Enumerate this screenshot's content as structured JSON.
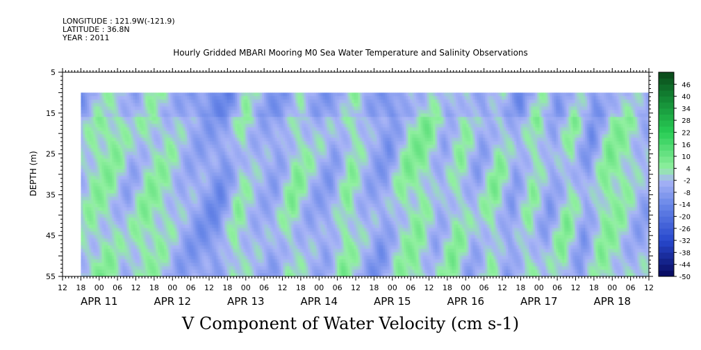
{
  "header": {
    "longitude": "LONGITUDE : 121.9W(-121.9)",
    "latitude": "LATITUDE : 36.8N",
    "year": "YEAR : 2011"
  },
  "chart_data": {
    "type": "heatmap",
    "title": "Hourly Gridded MBARI Mooring M0 Sea Water Temperature and Salinity Observations",
    "xlabel": "V Component of Water Velocity (cm s-1)",
    "ylabel": "DEPTH (m)",
    "ylim": [
      55,
      5
    ],
    "yticks": [
      5,
      15,
      25,
      35,
      45,
      55
    ],
    "data_depth_range": [
      10,
      55
    ],
    "x_hour_ticks": [
      "12",
      "18",
      "00",
      "06",
      "12",
      "18",
      "00",
      "06",
      "12",
      "18",
      "00",
      "06",
      "12",
      "18",
      "00",
      "06",
      "12",
      "18",
      "00",
      "06",
      "12",
      "18",
      "00",
      "06",
      "12",
      "18",
      "00",
      "06",
      "12",
      "18",
      "00",
      "06",
      "12"
    ],
    "x_date_labels": [
      "APR 11",
      "APR 12",
      "APR 13",
      "APR 14",
      "APR 15",
      "APR 16",
      "APR 17",
      "APR 18"
    ],
    "x_range": [
      "2011-04-10 12:00",
      "2011-04-18 12:00"
    ],
    "data_start": "2011-04-10 18:00",
    "colorbar": {
      "ticks": [
        46,
        40,
        34,
        28,
        22,
        16,
        10,
        4,
        -2,
        -8,
        -14,
        -20,
        -26,
        -32,
        -38,
        -44,
        -50
      ],
      "range": [
        -50,
        52
      ]
    },
    "dominant_columns_by_time": [
      {
        "time": "APR 10 18:00",
        "value": -4
      },
      {
        "time": "APR 11 00:00",
        "value": 3
      },
      {
        "time": "APR 11 06:00",
        "value": 4
      },
      {
        "time": "APR 11 12:00",
        "value": -3
      },
      {
        "time": "APR 11 18:00",
        "value": 4
      },
      {
        "time": "APR 12 00:00",
        "value": 2
      },
      {
        "time": "APR 12 06:00",
        "value": -4
      },
      {
        "time": "APR 12 12:00",
        "value": -7
      },
      {
        "time": "APR 12 18:00",
        "value": -10
      },
      {
        "time": "APR 13 00:00",
        "value": 3
      },
      {
        "time": "APR 13 06:00",
        "value": -3
      },
      {
        "time": "APR 13 12:00",
        "value": -6
      },
      {
        "time": "APR 13 18:00",
        "value": 4
      },
      {
        "time": "APR 14 00:00",
        "value": -3
      },
      {
        "time": "APR 14 06:00",
        "value": -6
      },
      {
        "time": "APR 14 12:00",
        "value": 5
      },
      {
        "time": "APR 14 18:00",
        "value": -4
      },
      {
        "time": "APR 15 00:00",
        "value": -8
      },
      {
        "time": "APR 15 06:00",
        "value": 3
      },
      {
        "time": "APR 15 12:00",
        "value": 5
      },
      {
        "time": "APR 15 18:00",
        "value": -4
      },
      {
        "time": "APR 16 00:00",
        "value": 4
      },
      {
        "time": "APR 16 06:00",
        "value": -5
      },
      {
        "time": "APR 16 12:00",
        "value": 4
      },
      {
        "time": "APR 16 18:00",
        "value": -7
      },
      {
        "time": "APR 17 00:00",
        "value": 4
      },
      {
        "time": "APR 17 06:00",
        "value": -6
      },
      {
        "time": "APR 17 12:00",
        "value": 4
      },
      {
        "time": "APR 17 18:00",
        "value": -8
      },
      {
        "time": "APR 18 00:00",
        "value": 5
      },
      {
        "time": "APR 18 06:00",
        "value": 3
      },
      {
        "time": "APR 18 12:00",
        "value": -4
      }
    ]
  }
}
